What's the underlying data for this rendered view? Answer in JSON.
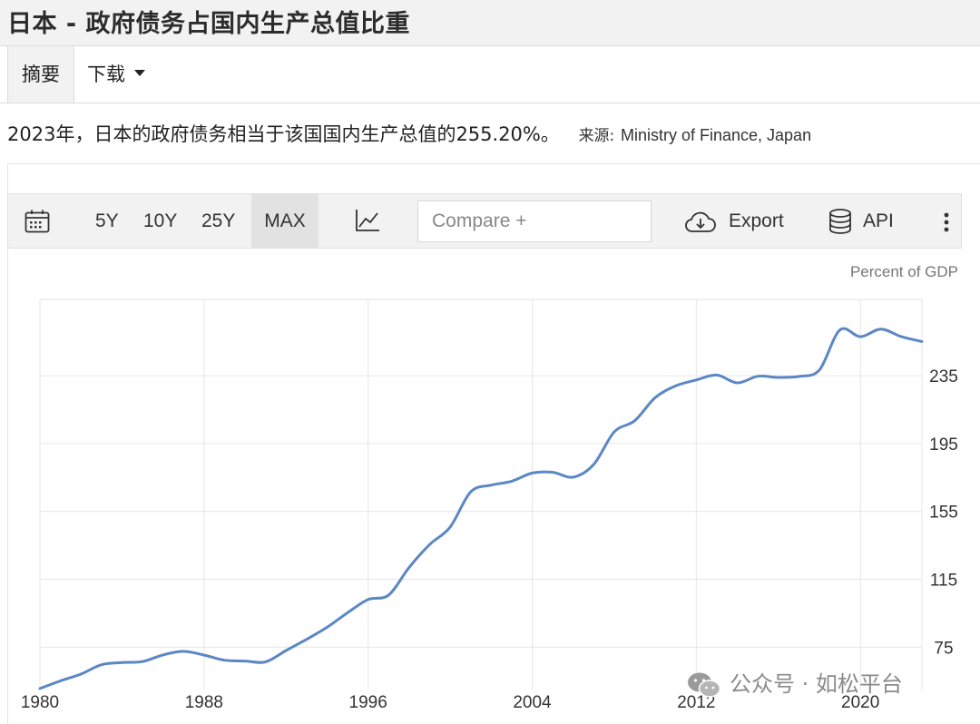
{
  "header": {
    "title": "日本 - 政府债务占国内生产总值比重"
  },
  "tabs": {
    "summary": "摘要",
    "download": "下载"
  },
  "summary": {
    "text": "2023年，日本的政府债务相当于该国国内生产总值的255.20%。",
    "source_label": "来源:",
    "source_value": "Ministry of Finance, Japan"
  },
  "toolbar": {
    "calendar_icon": "calendar-icon",
    "ranges": [
      "5Y",
      "10Y",
      "25Y",
      "MAX"
    ],
    "selected_range": "MAX",
    "chart_type_icon": "line-chart-icon",
    "compare_placeholder": "Compare +",
    "export_label": "Export",
    "api_label": "API",
    "more_icon": "more-vertical-icon"
  },
  "watermark": {
    "text": "公众号 · 如松平台"
  },
  "colors": {
    "line": "#5b87c5",
    "grid": "#e6e6e6",
    "axis_text": "#333333"
  },
  "chart_data": {
    "type": "line",
    "title": "",
    "ylabel": "Percent of GDP",
    "xlabel": "",
    "grid": true,
    "xlim": [
      1980,
      2023
    ],
    "ylim": [
      50,
      280
    ],
    "x_ticks": [
      1980,
      1988,
      1996,
      2004,
      2012,
      2020
    ],
    "y_ticks": [
      75,
      115,
      155,
      195,
      235
    ],
    "series": [
      {
        "x": [
          1980,
          1981,
          1982,
          1983,
          1984,
          1985,
          1986,
          1987,
          1988,
          1989,
          1990,
          1991,
          1992,
          1993,
          1994,
          1995,
          1996,
          1997,
          1998,
          1999,
          2000,
          2001,
          2002,
          2003,
          2004,
          2005,
          2006,
          2007,
          2008,
          2009,
          2010,
          2011,
          2012,
          2013,
          2014,
          2015,
          2016,
          2017,
          2018,
          2019,
          2020,
          2021,
          2022,
          2023
        ],
        "y": [
          50.6,
          55.1,
          59.1,
          64.6,
          65.9,
          66.5,
          70.4,
          72.5,
          70.3,
          67.3,
          66.8,
          66.3,
          73.0,
          79.6,
          86.7,
          95.3,
          103.1,
          105.7,
          122.0,
          135.5,
          145.8,
          166.5,
          170.5,
          172.8,
          177.6,
          178.1,
          175.2,
          182.7,
          201.9,
          208.5,
          222.1,
          229.0,
          232.5,
          235.4,
          230.8,
          234.7,
          234.0,
          234.6,
          238.4,
          262.0,
          258.0,
          262.5,
          258.0,
          255.2
        ]
      }
    ]
  }
}
